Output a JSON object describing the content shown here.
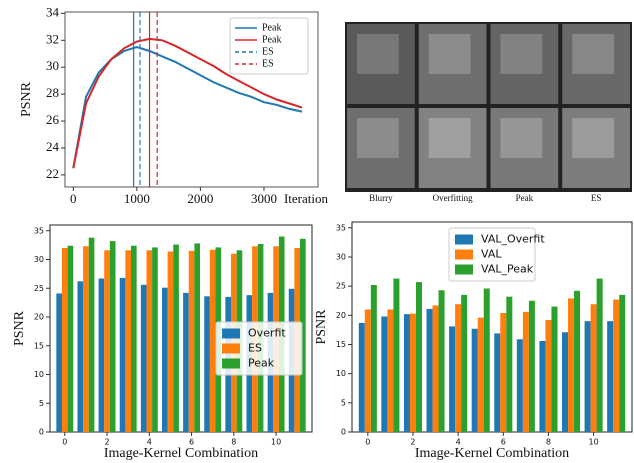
{
  "chart_data": [
    {
      "type": "line",
      "y_label": "PSNR",
      "x_label": "Iteration",
      "x": [
        0,
        200,
        400,
        600,
        800,
        1000,
        1200,
        1400,
        1600,
        1800,
        2000,
        2200,
        2400,
        2600,
        2800,
        3000,
        3200,
        3400,
        3600
      ],
      "series": [
        {
          "name": "Peak",
          "color": "#1f77b4",
          "values": [
            22.5,
            27.8,
            29.6,
            30.6,
            31.2,
            31.5,
            31.2,
            30.8,
            30.4,
            29.9,
            29.4,
            28.9,
            28.5,
            28.1,
            27.8,
            27.4,
            27.2,
            26.9,
            26.7
          ]
        },
        {
          "name": "Peak",
          "color": "#d62728",
          "values": [
            22.5,
            27.3,
            29.3,
            30.6,
            31.4,
            31.9,
            32.1,
            32.0,
            31.6,
            31.1,
            30.6,
            30.1,
            29.5,
            29.0,
            28.5,
            28.0,
            27.6,
            27.3,
            27.0
          ]
        }
      ],
      "vlines": [
        {
          "x": 950,
          "color": "#1f77b4",
          "dashed": false
        },
        {
          "x": 1200,
          "color": "#d62728",
          "dashed": false
        },
        {
          "name": "ES",
          "x": 1050,
          "color": "#1f77b4",
          "dashed": true
        },
        {
          "name": "ES",
          "x": 1320,
          "color": "#d62728",
          "dashed": true
        }
      ],
      "xlim": [
        -130,
        3850
      ],
      "xticks": [
        0,
        1000,
        2000,
        3000
      ],
      "ylim": [
        21.1,
        34.1
      ],
      "yticks": [
        22,
        24,
        26,
        28,
        30,
        32,
        34
      ],
      "legend": "upper right"
    },
    {
      "type": "bar",
      "y_label": "PSNR",
      "x_label": "Image-Kernel Combination",
      "categories": [
        0,
        1,
        2,
        3,
        4,
        5,
        6,
        7,
        8,
        9,
        10,
        11
      ],
      "series": [
        {
          "name": "Overfit",
          "color": "#1f77b4",
          "values": [
            24.1,
            26.2,
            26.7,
            26.8,
            25.6,
            25.1,
            24.2,
            23.6,
            23.5,
            23.8,
            24.2,
            24.9
          ]
        },
        {
          "name": "ES",
          "color": "#ff7f0e",
          "values": [
            32,
            32.3,
            31.6,
            31.6,
            31.6,
            31.4,
            31.5,
            31.7,
            31,
            32.3,
            32.3,
            32
          ]
        },
        {
          "name": "Peak",
          "color": "#2ca02c",
          "values": [
            32.4,
            33.8,
            33.2,
            32.4,
            32.1,
            32.6,
            32.8,
            32.1,
            31.6,
            32.7,
            34,
            33.6
          ]
        }
      ],
      "xlim": [
        -0.7,
        11.7
      ],
      "xticks": [
        0,
        2,
        4,
        6,
        8,
        10
      ],
      "ylim": [
        0,
        36
      ],
      "yticks": [
        0,
        5,
        10,
        15,
        20,
        25,
        30,
        35
      ],
      "legend": "center right"
    },
    {
      "type": "bar",
      "y_label": "PSNR",
      "x_label": "Image-Kernel Combination",
      "categories": [
        0,
        1,
        2,
        3,
        4,
        5,
        6,
        7,
        8,
        9,
        10,
        11
      ],
      "series": [
        {
          "name": "VAL_Overfit",
          "color": "#1f77b4",
          "values": [
            18.7,
            19.8,
            20.2,
            21.1,
            18.1,
            17.7,
            16.9,
            15.9,
            15.6,
            17.1,
            19,
            19
          ]
        },
        {
          "name": "VAL",
          "color": "#ff7f0e",
          "values": [
            21,
            21,
            20.3,
            21.7,
            21.9,
            19.6,
            20.4,
            20.6,
            19.2,
            22.9,
            21.9,
            22.7
          ]
        },
        {
          "name": "VAL_Peak",
          "color": "#2ca02c",
          "values": [
            25.2,
            26.3,
            25.7,
            24.3,
            23.5,
            24.6,
            23.2,
            22.5,
            21.5,
            24.2,
            26.3,
            23.5
          ]
        }
      ],
      "xlim": [
        -0.7,
        11.7
      ],
      "xticks": [
        0,
        2,
        4,
        6,
        8,
        10
      ],
      "ylim": [
        0,
        36
      ],
      "yticks": [
        0,
        5,
        10,
        15,
        20,
        25,
        30,
        35
      ],
      "legend": "upper center"
    }
  ],
  "image_grid": {
    "labels": [
      "Blurry",
      "Overfitting",
      "Peak",
      "ES"
    ]
  }
}
